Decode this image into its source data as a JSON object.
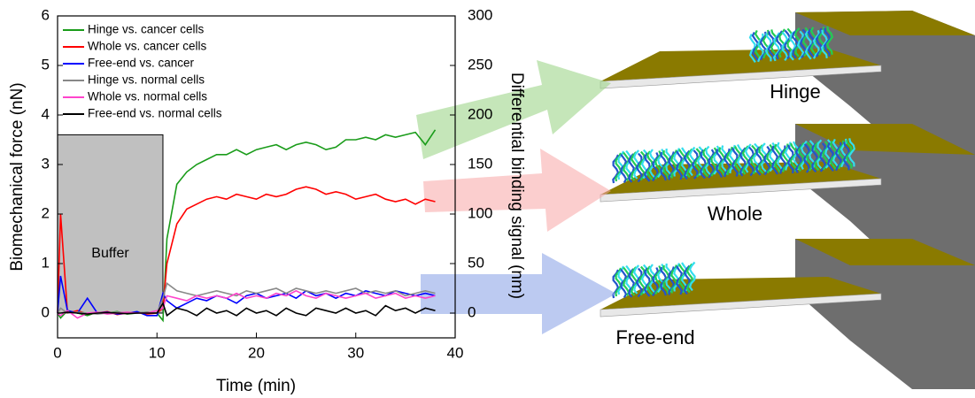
{
  "chart_data": {
    "type": "line",
    "xlabel": "Time (min)",
    "ylabel": "Biomechanical force (nN)",
    "y2label": "Differential binding signal (nm)",
    "x": [
      0,
      0.3,
      1,
      2,
      3,
      4,
      5,
      6,
      7,
      8,
      9,
      10,
      10.6,
      11,
      12,
      13,
      14,
      15,
      16,
      17,
      18,
      19,
      20,
      21,
      22,
      23,
      24,
      25,
      26,
      27,
      28,
      29,
      30,
      31,
      32,
      33,
      34,
      35,
      36,
      37,
      38
    ],
    "series": [
      {
        "name": "Hinge vs. cancer cells",
        "color": "#1a9c1a",
        "values": [
          0,
          -0.1,
          0.05,
          0,
          -0.05,
          0.02,
          0,
          0.03,
          -0.02,
          0,
          0.02,
          0,
          -0.15,
          1.5,
          2.6,
          2.85,
          3.0,
          3.1,
          3.2,
          3.2,
          3.3,
          3.2,
          3.3,
          3.35,
          3.4,
          3.3,
          3.4,
          3.45,
          3.4,
          3.3,
          3.35,
          3.5,
          3.5,
          3.55,
          3.5,
          3.6,
          3.55,
          3.6,
          3.65,
          3.4,
          3.7
        ]
      },
      {
        "name": "Whole vs. cancer cells",
        "color": "#ff0000",
        "values": [
          0,
          2.0,
          0,
          0.05,
          -0.02,
          0,
          0.03,
          -0.03,
          0,
          0.02,
          -0.02,
          0,
          0.1,
          1.0,
          1.8,
          2.1,
          2.2,
          2.3,
          2.35,
          2.3,
          2.4,
          2.35,
          2.3,
          2.4,
          2.35,
          2.4,
          2.5,
          2.55,
          2.5,
          2.4,
          2.45,
          2.4,
          2.3,
          2.35,
          2.4,
          2.3,
          2.25,
          2.3,
          2.2,
          2.3,
          2.25
        ]
      },
      {
        "name": "Free-end vs. cancer",
        "color": "#0000ff",
        "values": [
          0,
          0.75,
          0.05,
          0,
          0.3,
          0,
          0.02,
          -0.02,
          0,
          0.03,
          -0.05,
          -0.05,
          0.4,
          0.25,
          0.1,
          0.2,
          0.3,
          0.25,
          0.35,
          0.3,
          0.2,
          0.35,
          0.4,
          0.3,
          0.35,
          0.4,
          0.3,
          0.45,
          0.35,
          0.4,
          0.3,
          0.4,
          0.35,
          0.45,
          0.4,
          0.35,
          0.45,
          0.4,
          0.35,
          0.4,
          0.35
        ]
      },
      {
        "name": "Hinge vs. normal cells",
        "color": "#888888",
        "values": [
          0,
          0.1,
          0,
          0.02,
          0,
          -0.02,
          0,
          0.02,
          0,
          0,
          0.02,
          0,
          0.3,
          0.6,
          0.45,
          0.4,
          0.35,
          0.4,
          0.45,
          0.4,
          0.35,
          0.45,
          0.4,
          0.45,
          0.5,
          0.4,
          0.5,
          0.45,
          0.4,
          0.45,
          0.4,
          0.45,
          0.5,
          0.4,
          0.45,
          0.4,
          0.45,
          0.35,
          0.4,
          0.45,
          0.4
        ]
      },
      {
        "name": "Whole vs. normal cells",
        "color": "#ff44cc",
        "values": [
          0,
          -0.05,
          0.05,
          -0.1,
          0,
          0.02,
          -0.02,
          0,
          0.02,
          0,
          0,
          0.05,
          0.1,
          0.35,
          0.3,
          0.25,
          0.35,
          0.3,
          0.35,
          0.3,
          0.4,
          0.3,
          0.35,
          0.3,
          0.4,
          0.35,
          0.45,
          0.35,
          0.3,
          0.4,
          0.35,
          0.3,
          0.35,
          0.4,
          0.3,
          0.35,
          0.4,
          0.3,
          0.35,
          0.3,
          0.35
        ]
      },
      {
        "name": "Free-end vs. normal cells",
        "color": "#000000",
        "values": [
          0,
          0,
          0.02,
          0,
          -0.02,
          0,
          0.01,
          0,
          -0.01,
          0,
          0,
          0,
          0.2,
          -0.05,
          0.1,
          0.05,
          -0.05,
          0.1,
          0,
          0.05,
          -0.05,
          0.1,
          0,
          0.05,
          -0.05,
          0.1,
          0,
          -0.05,
          0.1,
          0.05,
          0,
          0.1,
          0,
          0.05,
          -0.05,
          0.15,
          0.05,
          0.1,
          0,
          0.1,
          0.05
        ]
      }
    ],
    "xlim": [
      0,
      40
    ],
    "xticks": [
      0,
      10,
      20,
      30,
      40
    ],
    "ylim": [
      -0.5,
      6
    ],
    "yticks": [
      0,
      1,
      2,
      3,
      4,
      5,
      6
    ],
    "y2lim": [
      -25,
      300
    ],
    "y2ticks": [
      0,
      50,
      100,
      150,
      200,
      250,
      300
    ],
    "shaded_region": {
      "label": "Buffer",
      "x": [
        0,
        10.6
      ],
      "y": [
        0,
        3.6
      ],
      "color": "#c0c0c0"
    },
    "annotations": [
      "Hinge",
      "Whole",
      "Free-end"
    ]
  }
}
